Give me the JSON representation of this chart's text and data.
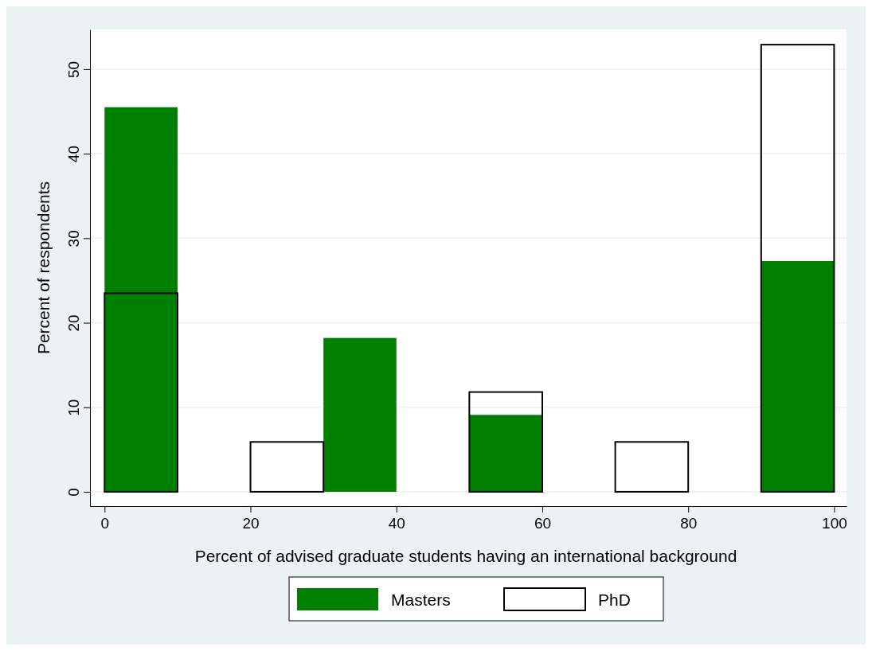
{
  "chart_data": {
    "type": "histogram",
    "xlabel": "Percent of advised graduate students having an international background",
    "ylabel": "Percent of respondents",
    "bins": [
      0,
      10,
      20,
      30,
      40,
      50,
      60,
      70,
      80,
      90,
      100
    ],
    "series": [
      {
        "name": "Masters",
        "color": "#008000",
        "values": [
          45.5,
          0,
          0,
          18.2,
          0,
          9.1,
          0,
          0,
          0,
          27.3
        ]
      },
      {
        "name": "PhD",
        "color": "#000000",
        "values": [
          23.5,
          null,
          5.9,
          null,
          null,
          11.8,
          null,
          5.9,
          null,
          52.9
        ]
      }
    ],
    "xlim": [
      -2,
      101.7
    ],
    "ylim": [
      -1.7,
      54.7
    ],
    "xticks": [
      0,
      20,
      40,
      60,
      80,
      100
    ],
    "yticks": [
      0,
      10,
      20,
      30,
      40,
      50
    ],
    "grid": "y",
    "legend": "bottom"
  }
}
